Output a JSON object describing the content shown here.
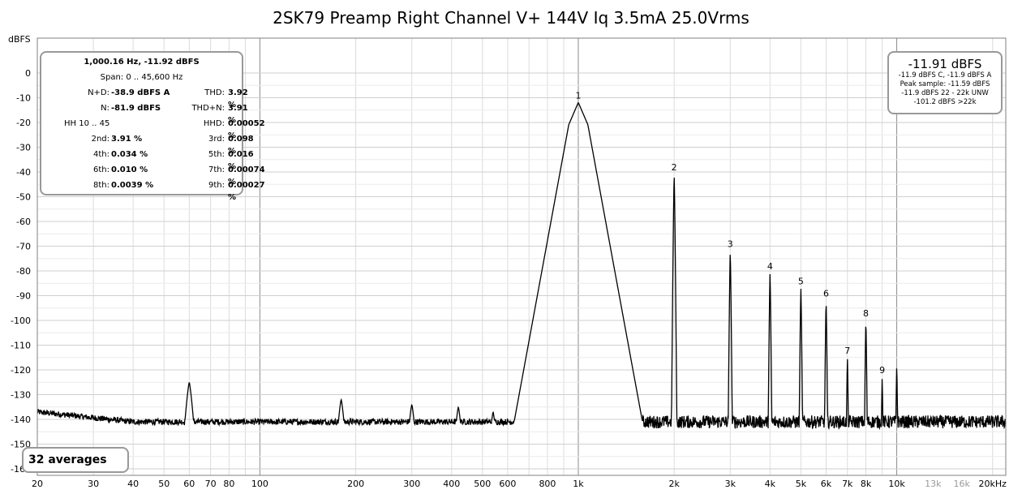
{
  "chart_data": {
    "type": "line",
    "title": "2SK79 Preamp Right Channel V+ 144V Iq 3.5mA 25.0Vrms",
    "ylabel": "dBFS",
    "xlabel": "",
    "x_scale": "log",
    "xlim": [
      20,
      22000
    ],
    "ylim": [
      -162,
      0
    ],
    "x_ticks": [
      {
        "v": 20,
        "label": "20"
      },
      {
        "v": 30,
        "label": "30"
      },
      {
        "v": 40,
        "label": "40"
      },
      {
        "v": 50,
        "label": "50"
      },
      {
        "v": 60,
        "label": "60"
      },
      {
        "v": 70,
        "label": "70"
      },
      {
        "v": 80,
        "label": "80"
      },
      {
        "v": 100,
        "label": "100"
      },
      {
        "v": 200,
        "label": "200"
      },
      {
        "v": 300,
        "label": "300"
      },
      {
        "v": 400,
        "label": "400"
      },
      {
        "v": 500,
        "label": "500"
      },
      {
        "v": 600,
        "label": "600"
      },
      {
        "v": 800,
        "label": "800"
      },
      {
        "v": 1000,
        "label": "1k"
      },
      {
        "v": 2000,
        "label": "2k"
      },
      {
        "v": 3000,
        "label": "3k"
      },
      {
        "v": 4000,
        "label": "4k"
      },
      {
        "v": 5000,
        "label": "5k"
      },
      {
        "v": 6000,
        "label": "6k"
      },
      {
        "v": 7000,
        "label": "7k"
      },
      {
        "v": 8000,
        "label": "8k"
      },
      {
        "v": 10000,
        "label": "10k"
      },
      {
        "v": 13000,
        "label": "13k"
      },
      {
        "v": 16000,
        "label": "16k"
      },
      {
        "v": 20000,
        "label": "20kHz"
      }
    ],
    "minor_tick_labels": [
      "13k",
      "16k"
    ],
    "y_ticks": [
      0,
      -10,
      -20,
      -30,
      -40,
      -50,
      -60,
      -70,
      -80,
      -90,
      -100,
      -110,
      -120,
      -130,
      -140,
      -150,
      -160
    ],
    "grid": true,
    "noise_floor_db": -141,
    "peaks": [
      {
        "f": 60,
        "db": -125,
        "label": ""
      },
      {
        "f": 180,
        "db": -132,
        "label": ""
      },
      {
        "f": 300,
        "db": -134,
        "label": ""
      },
      {
        "f": 420,
        "db": -135,
        "label": ""
      },
      {
        "f": 540,
        "db": -137,
        "label": ""
      },
      {
        "f": 1000,
        "db": -11.9,
        "label": "1"
      },
      {
        "f": 2000,
        "db": -41,
        "label": "2"
      },
      {
        "f": 3000,
        "db": -72,
        "label": "3"
      },
      {
        "f": 4000,
        "db": -81,
        "label": "4"
      },
      {
        "f": 5000,
        "db": -87,
        "label": "5"
      },
      {
        "f": 6000,
        "db": -92,
        "label": "6"
      },
      {
        "f": 7000,
        "db": -115,
        "label": "7"
      },
      {
        "f": 8000,
        "db": -100,
        "label": "8"
      },
      {
        "f": 9000,
        "db": -123,
        "label": "9"
      },
      {
        "f": 10000,
        "db": -118,
        "label": ""
      },
      {
        "f": 13000,
        "db": -137,
        "label": ""
      }
    ],
    "stats": {
      "header": "1,000.16 Hz, -11.92 dBFS",
      "span": "Span: 0 .. 45,600 Hz",
      "rows": [
        {
          "l1": "N+D:",
          "v1": "-38.9 dBFS A",
          "l2": "THD:",
          "v2": "3.92 %"
        },
        {
          "l1": "N:",
          "v1": "-81.9 dBFS",
          "l2": "THD+N:",
          "v2": "3.91 %"
        },
        {
          "l1": "HH 10 .. 45",
          "v1": "",
          "l2": "HHD:",
          "v2": "0.00052 %"
        },
        {
          "l1": "2nd:",
          "v1": "3.91 %",
          "l2": "3rd:",
          "v2": "0.098 %"
        },
        {
          "l1": "4th:",
          "v1": "0.034 %",
          "l2": "5th:",
          "v2": "0.016 %"
        },
        {
          "l1": "6th:",
          "v1": "0.010 %",
          "l2": "7th:",
          "v2": "0.00074 %"
        },
        {
          "l1": "8th:",
          "v1": "0.0039 %",
          "l2": "9th:",
          "v2": "0.00027 %"
        }
      ]
    },
    "level": {
      "main": "-11.91 dBFS",
      "lines": [
        "-11.9 dBFS C, -11.9 dBFS A",
        "Peak sample: -11.59 dBFS",
        "-11.9 dBFS 22 - 22k UNW",
        "-101.2 dBFS >22k"
      ]
    },
    "averages": "32 averages"
  }
}
